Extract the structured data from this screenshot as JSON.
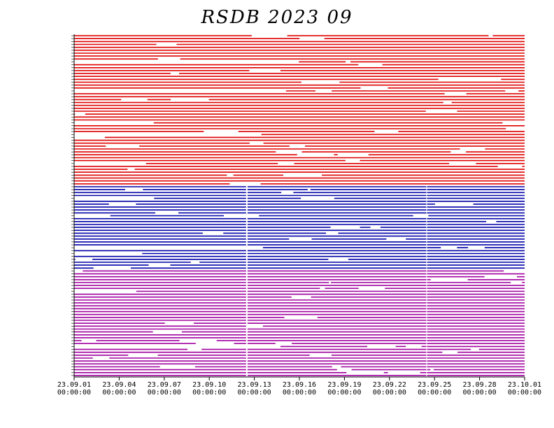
{
  "chart_data": {
    "type": "timeline",
    "title": "RSDB  2023  09",
    "x_range": [
      "23.09.01 00:00:00",
      "23.10.01 00:00:00"
    ],
    "x_ticks": [
      {
        "date": "23.09.01",
        "time": "00:00:00"
      },
      {
        "date": "23.09.04",
        "time": "00:00:00"
      },
      {
        "date": "23.09.07",
        "time": "00:00:00"
      },
      {
        "date": "23.09.10",
        "time": "00:00:00"
      },
      {
        "date": "23.09.13",
        "time": "00:00:00"
      },
      {
        "date": "23.09.16",
        "time": "00:00:00"
      },
      {
        "date": "23.09.19",
        "time": "00:00:00"
      },
      {
        "date": "23.09.22",
        "time": "00:00:00"
      },
      {
        "date": "23.09.25",
        "time": "00:00:00"
      },
      {
        "date": "23.09.28",
        "time": "00:00:00"
      },
      {
        "date": "23.10.01",
        "time": "00:00:00"
      }
    ],
    "groups": [
      {
        "color": "#e00000",
        "station_count": 52
      },
      {
        "color": "#0000a8",
        "station_count": 29
      },
      {
        "color": "#a000a0",
        "station_count": 37
      }
    ],
    "common_gaps_days": [
      11.45,
      11.55,
      23.45,
      23.5
    ]
  }
}
